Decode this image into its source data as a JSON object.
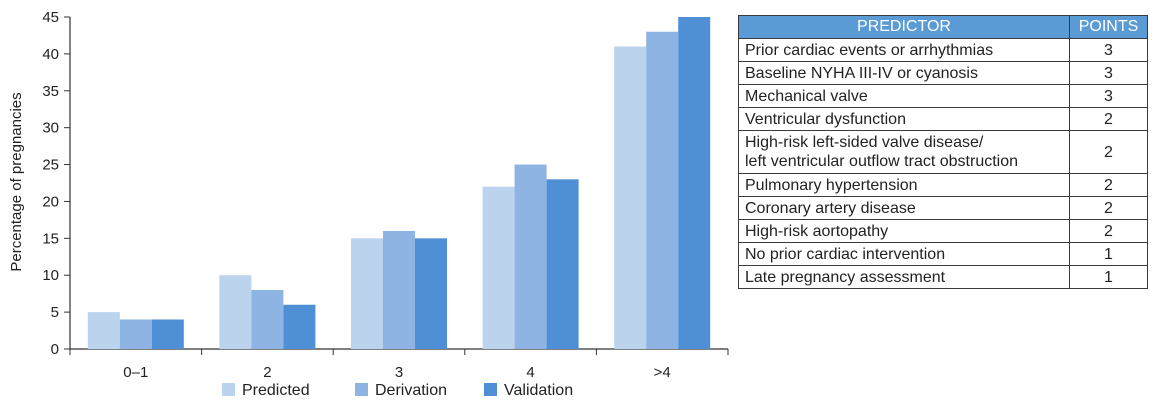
{
  "chart_data": {
    "type": "bar",
    "title": "",
    "xlabel": "",
    "ylabel": "Percentage of pregnancies",
    "ylim": [
      0,
      45
    ],
    "yticks": [
      0,
      5,
      10,
      15,
      20,
      25,
      30,
      35,
      40,
      45
    ],
    "categories": [
      "0–1",
      "2",
      "3",
      "4",
      ">4"
    ],
    "series": [
      {
        "name": "Predicted",
        "color": "#bcd3ee",
        "values": [
          5,
          10,
          15,
          22,
          41
        ]
      },
      {
        "name": "Derivation",
        "color": "#8db4e2",
        "values": [
          4,
          8,
          16,
          25,
          43
        ]
      },
      {
        "name": "Validation",
        "color": "#4f8fd6",
        "values": [
          4,
          6,
          15,
          23,
          45
        ]
      }
    ],
    "legend_position": "bottom",
    "grid": false
  },
  "table": {
    "headers": {
      "predictor": "PREDICTOR",
      "points": "POINTS"
    },
    "rows": [
      {
        "predictor": "Prior cardiac events or arrhythmias",
        "points": "3"
      },
      {
        "predictor": "Baseline NYHA III-IV or cyanosis",
        "points": "3"
      },
      {
        "predictor": "Mechanical valve",
        "points": "3"
      },
      {
        "predictor": "Ventricular dysfunction",
        "points": "2"
      },
      {
        "predictor": "High-risk left-sided valve disease/\nleft ventricular outflow tract obstruction",
        "points": "2"
      },
      {
        "predictor": "Pulmonary hypertension",
        "points": "2"
      },
      {
        "predictor": "Coronary artery disease",
        "points": "2"
      },
      {
        "predictor": "High-risk aortopathy",
        "points": "2"
      },
      {
        "predictor": "No prior cardiac intervention",
        "points": "1"
      },
      {
        "predictor": "Late pregnancy assessment",
        "points": "1"
      }
    ]
  }
}
